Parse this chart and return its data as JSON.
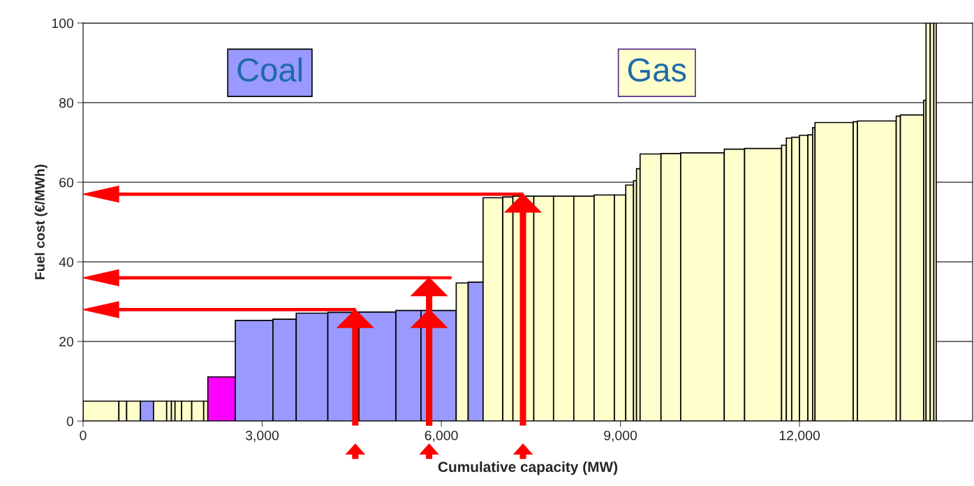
{
  "chart_data": {
    "type": "histogram",
    "xlabel": "Cumulative capacity (MW)",
    "ylabel": "Fuel cost (€/MWh)",
    "bins": [
      0,
      600,
      730,
      960,
      1180,
      1400,
      1480,
      1540,
      1650,
      1820,
      2020,
      2090,
      2550,
      3180,
      3570,
      4100,
      4620,
      5240,
      5660,
      6250,
      6450,
      6700,
      7030,
      7200,
      7550,
      7880,
      8220,
      8560,
      8900,
      9090,
      9220,
      9270,
      9330,
      9680,
      10010,
      10740,
      11080,
      11700,
      11780,
      11870,
      12000,
      12140,
      12220,
      12260,
      12900,
      12970,
      13620,
      13690,
      14080,
      14120,
      14190,
      14250,
      14290
    ],
    "values": [
      5,
      5,
      5,
      5,
      5,
      5,
      5,
      5,
      5,
      5,
      5,
      11.1,
      25.3,
      25.6,
      27.1,
      27.3,
      27.4,
      27.8,
      27.8,
      34.7,
      34.9,
      56.1,
      56.3,
      56.5,
      56.5,
      56.5,
      56.5,
      56.8,
      56.8,
      59.3,
      60.4,
      63.4,
      67.1,
      67.2,
      67.4,
      68.3,
      68.5,
      69.3,
      71.1,
      71.3,
      71.8,
      71.9,
      73.7,
      75.0,
      75.2,
      75.4,
      76.6,
      76.9,
      80.6,
      100,
      100,
      100
    ],
    "colors": [
      "#ffffcc",
      "#ffffcc",
      "#ffffcc",
      "#9999ff",
      "#ffffcc",
      "#ffffcc",
      "#ffffcc",
      "#ffffcc",
      "#ffffcc",
      "#ffffcc",
      "#ffffcc",
      "#ff00ff",
      "#9999ff",
      "#9999ff",
      "#9999ff",
      "#9999ff",
      "#9999ff",
      "#9999ff",
      "#9999ff",
      "#ffffcc",
      "#9999ff",
      "#ffffcc",
      "#ffffcc",
      "#ffffcc",
      "#ffffcc",
      "#ffffcc",
      "#ffffcc",
      "#ffffcc",
      "#ffffcc",
      "#ffffcc",
      "#ffffcc",
      "#ffffcc",
      "#ffffcc",
      "#ffffcc",
      "#ffffcc",
      "#ffffcc",
      "#ffffcc",
      "#ffffcc",
      "#ffffcc",
      "#ffffcc",
      "#ffffcc",
      "#ffffcc",
      "#ffffcc",
      "#ffffcc",
      "#ffffcc",
      "#ffffcc",
      "#ffffcc",
      "#ffffcc",
      "#ffffcc",
      "#ffffcc",
      "#ffffcc",
      "#ffffcc"
    ],
    "xlim": [
      0,
      14900
    ],
    "ylim": [
      0,
      100
    ],
    "xticks": [
      0,
      {
        "value": 3000,
        "label": "3,000"
      },
      {
        "value": 6000,
        "label": "6,000"
      },
      {
        "value": 9000,
        "label": "9,000"
      },
      {
        "value": 12000,
        "label": "12,000"
      }
    ],
    "yticks": [
      0,
      20,
      40,
      60,
      80,
      100
    ],
    "grid": "y",
    "annotations": [
      "Coal",
      "Gas"
    ]
  }
}
